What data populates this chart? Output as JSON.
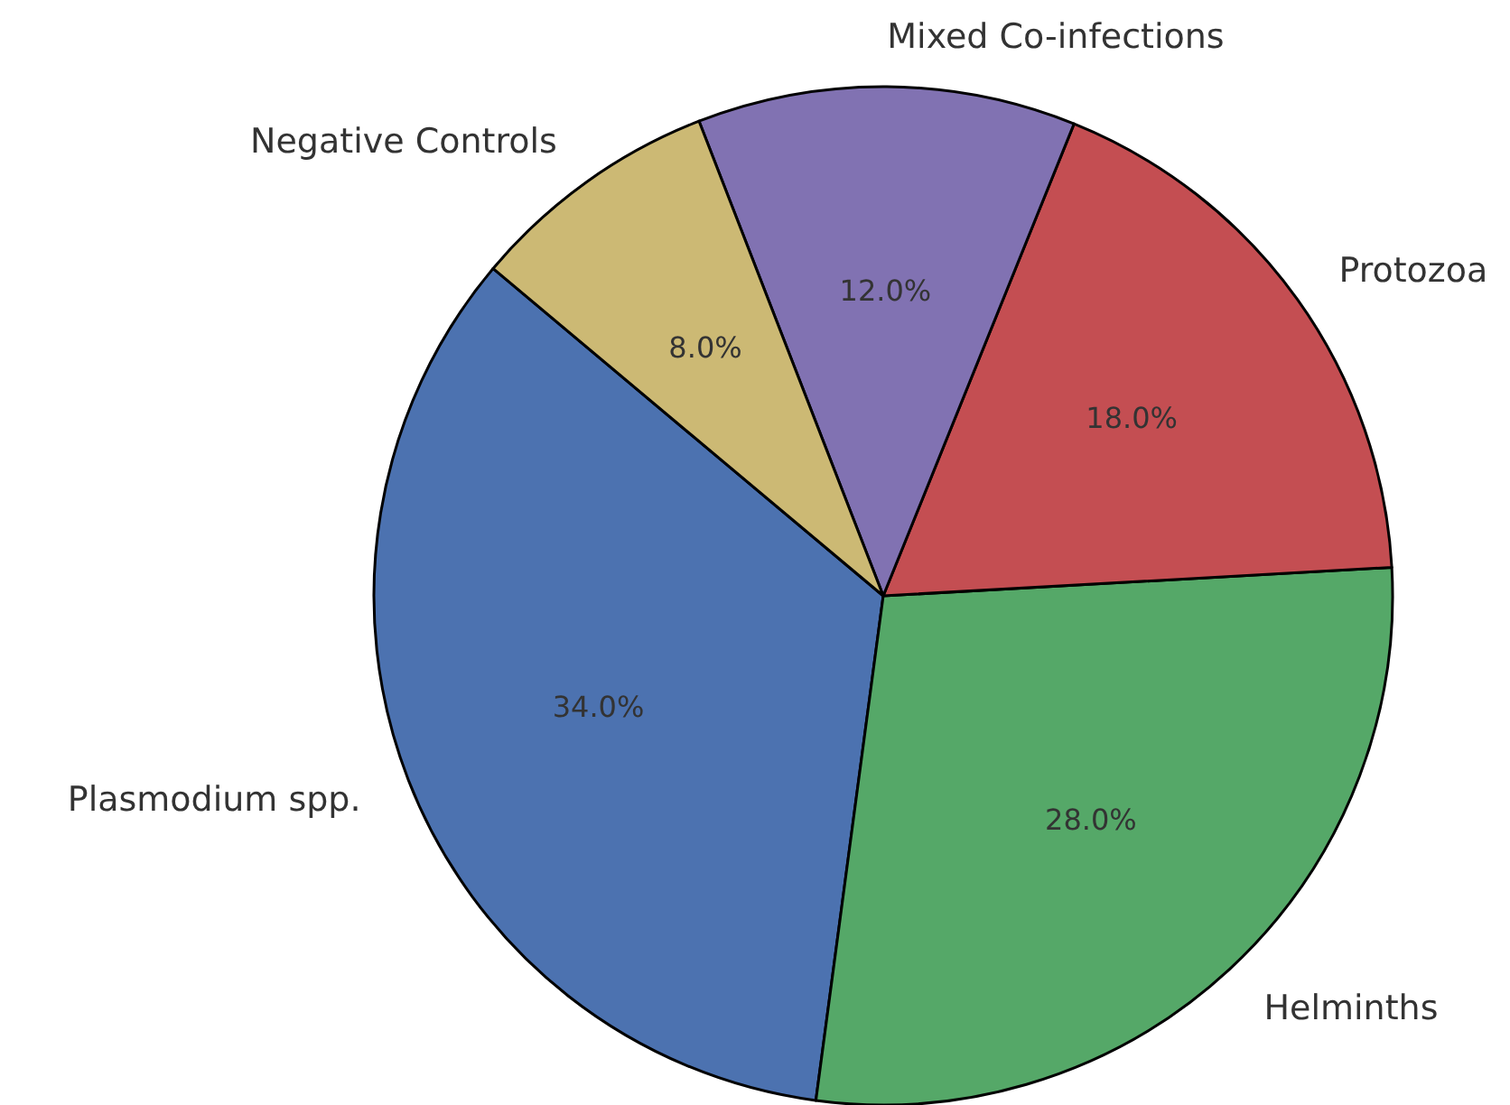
{
  "chart_data": {
    "type": "pie",
    "categories": [
      "Plasmodium spp.",
      "Helminths",
      "Protozoa",
      "Mixed Co-infections",
      "Negative Controls"
    ],
    "values": [
      34,
      28,
      18,
      12,
      8
    ],
    "colors": [
      "#4c72b0",
      "#55a868",
      "#c44e52",
      "#8172b2",
      "#ccb974"
    ],
    "value_labels": [
      "34.0%",
      "28.0%",
      "18.0%",
      "12.0%",
      "8.0%"
    ]
  }
}
